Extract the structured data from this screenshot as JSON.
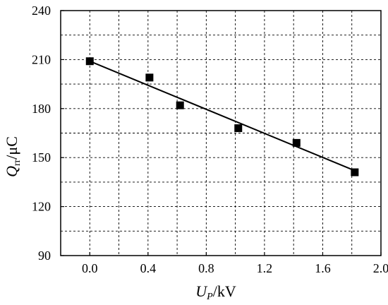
{
  "chart_data": {
    "type": "scatter",
    "title": "",
    "xlabel": {
      "main": "U",
      "sub": "P",
      "unit": "/kV"
    },
    "ylabel": {
      "main": "Q",
      "sub": "rr",
      "unit": "/μC"
    },
    "xlim": [
      -0.2,
      2.0
    ],
    "ylim": [
      90,
      240
    ],
    "xticks": [
      0.0,
      0.4,
      0.8,
      1.2,
      1.6,
      2.0
    ],
    "xtick_labels": [
      "0.0",
      "0.4",
      "0.8",
      "1.2",
      "1.6",
      "2.0"
    ],
    "yticks": [
      90,
      120,
      150,
      180,
      210,
      240
    ],
    "ytick_labels": [
      "90",
      "120",
      "150",
      "180",
      "210",
      "240"
    ],
    "grid": true,
    "grid_style": "dashed",
    "series": [
      {
        "marker": "square",
        "x": [
          0.0,
          0.41,
          0.62,
          1.02,
          1.42,
          1.82
        ],
        "y": [
          209,
          199,
          182,
          168,
          159,
          141
        ]
      }
    ],
    "fit_line": {
      "x": [
        0.0,
        1.82
      ],
      "y": [
        209,
        142
      ]
    },
    "colors": {
      "marker": "#000000",
      "line": "#000000",
      "grid": "#000000",
      "background": "#ffffff"
    }
  }
}
